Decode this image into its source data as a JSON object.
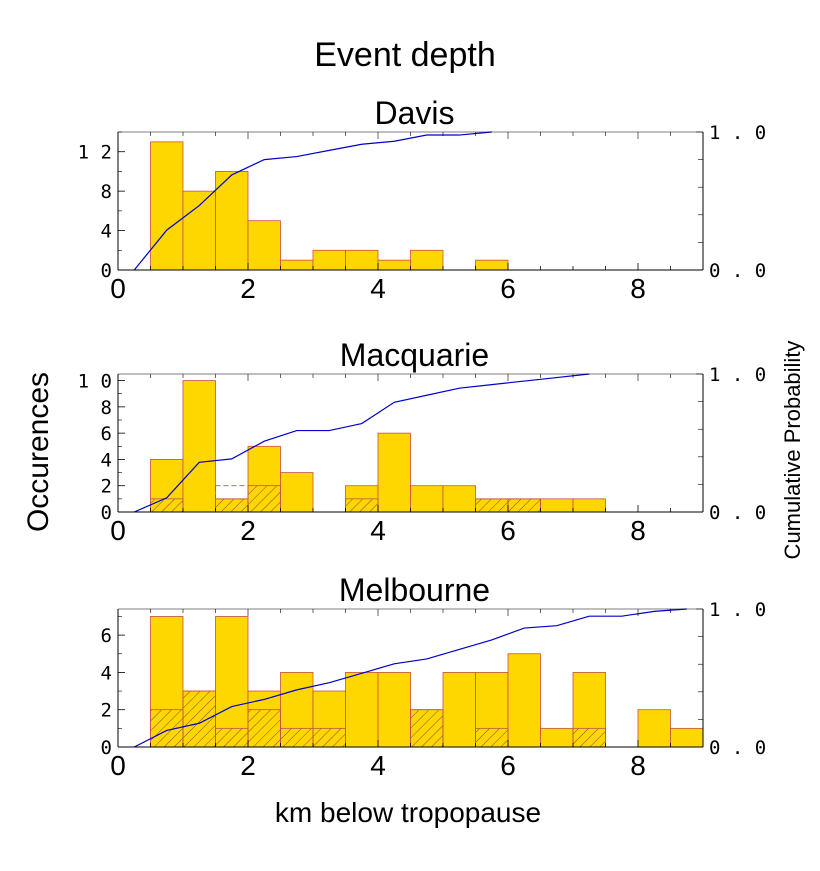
{
  "figure": {
    "title": "Event depth",
    "xlabel": "km below tropopause",
    "ylabel_left": "Occurences",
    "ylabel_right": "Cumulative Probability"
  },
  "colors": {
    "bar_fill": "#FFD700",
    "bar_edge": "#C8504A",
    "hatch": "#8B4A1A",
    "cdf_line": "#0000CC",
    "axis": "#000000"
  },
  "chart_data": [
    {
      "type": "bar",
      "title": "Davis",
      "bin_width": 0.5,
      "bin_starts": [
        0.5,
        1.0,
        1.5,
        2.0,
        2.5,
        3.0,
        3.5,
        4.0,
        4.5,
        5.0,
        5.5
      ],
      "values": [
        13,
        8,
        10,
        5,
        1,
        2,
        2,
        1,
        2,
        0,
        1
      ],
      "hatched_values": [],
      "dashed_values": [],
      "xlim": [
        0,
        9
      ],
      "xticks": [
        0,
        2,
        4,
        6,
        8
      ],
      "xtick_labels": [
        "0",
        "2",
        "4",
        "6",
        "8"
      ],
      "ylim": [
        0,
        14
      ],
      "yticks": [
        0,
        4,
        8,
        12
      ],
      "ytick_labels": [
        "0",
        "4",
        "8",
        "1 2"
      ],
      "cdf": {
        "x": [
          0.25,
          0.75,
          1.25,
          1.75,
          2.25,
          2.75,
          3.25,
          3.75,
          4.25,
          4.75,
          5.25,
          5.75
        ],
        "y": [
          0.0,
          0.289,
          0.467,
          0.689,
          0.8,
          0.822,
          0.867,
          0.911,
          0.933,
          0.978,
          0.978,
          1.0
        ]
      },
      "y2lim": [
        0,
        1
      ],
      "y2ticks": [
        0,
        1
      ],
      "y2tick_labels": [
        "0 . 0",
        "1 . 0"
      ]
    },
    {
      "type": "bar",
      "title": "Macquarie",
      "bin_width": 0.5,
      "bin_starts": [
        0.5,
        1.0,
        1.5,
        2.0,
        2.5,
        3.0,
        3.5,
        4.0,
        4.5,
        5.0,
        5.5,
        6.0,
        6.5,
        7.0
      ],
      "values": [
        4,
        10,
        1,
        5,
        3,
        0,
        2,
        6,
        2,
        2,
        1,
        1,
        1,
        1
      ],
      "hatched_values": [
        1,
        0,
        1,
        2,
        0,
        0,
        1,
        0,
        0,
        0,
        1,
        1,
        0,
        0
      ],
      "dashed_values": [
        0,
        0,
        2,
        0,
        0,
        0,
        0,
        0,
        0,
        0,
        0,
        0,
        0,
        0
      ],
      "xlim": [
        0,
        9
      ],
      "xticks": [
        0,
        2,
        4,
        6,
        8
      ],
      "xtick_labels": [
        "0",
        "2",
        "4",
        "6",
        "8"
      ],
      "ylim": [
        0,
        10.5
      ],
      "yticks": [
        0,
        2,
        4,
        6,
        8,
        10
      ],
      "ytick_labels": [
        "0",
        "2",
        "4",
        "6",
        "8",
        "1 0"
      ],
      "cdf": {
        "x": [
          0.25,
          0.75,
          1.25,
          1.75,
          2.25,
          2.75,
          3.25,
          3.75,
          4.25,
          4.75,
          5.25,
          5.75,
          6.25,
          6.75,
          7.25
        ],
        "y": [
          0.0,
          0.103,
          0.36,
          0.385,
          0.513,
          0.59,
          0.59,
          0.641,
          0.795,
          0.846,
          0.897,
          0.923,
          0.949,
          0.974,
          1.0
        ]
      },
      "y2lim": [
        0,
        1
      ],
      "y2ticks": [
        0,
        1
      ],
      "y2tick_labels": [
        "0 . 0",
        "1 . 0"
      ]
    },
    {
      "type": "bar",
      "title": "Melbourne",
      "bin_width": 0.5,
      "bin_starts": [
        0.5,
        1.0,
        1.5,
        2.0,
        2.5,
        3.0,
        3.5,
        4.0,
        4.5,
        5.0,
        5.5,
        6.0,
        6.5,
        7.0,
        7.5,
        8.0,
        8.5
      ],
      "values": [
        7,
        3,
        7,
        3,
        4,
        3,
        4,
        4,
        2,
        4,
        4,
        5,
        1,
        4,
        0,
        2,
        1
      ],
      "hatched_values": [
        2,
        3,
        1,
        2,
        1,
        1,
        0,
        0,
        2,
        0,
        1,
        0,
        0,
        1,
        0,
        0,
        0
      ],
      "dashed_values": [],
      "xlim": [
        0,
        9
      ],
      "xticks": [
        0,
        2,
        4,
        6,
        8
      ],
      "xtick_labels": [
        "0",
        "2",
        "4",
        "6",
        "8"
      ],
      "ylim": [
        0,
        7.4
      ],
      "yticks": [
        0,
        2,
        4,
        6
      ],
      "ytick_labels": [
        "0",
        "2",
        "4",
        "6"
      ],
      "cdf": {
        "x": [
          0.25,
          0.75,
          1.25,
          1.75,
          2.25,
          2.75,
          3.25,
          3.75,
          4.25,
          4.75,
          5.25,
          5.75,
          6.25,
          6.75,
          7.25,
          7.75,
          8.25,
          8.75
        ],
        "y": [
          0.0,
          0.12,
          0.172,
          0.293,
          0.345,
          0.414,
          0.466,
          0.534,
          0.603,
          0.638,
          0.707,
          0.776,
          0.862,
          0.879,
          0.948,
          0.948,
          0.983,
          1.0
        ]
      },
      "y2lim": [
        0,
        1
      ],
      "y2ticks": [
        0,
        1
      ],
      "y2tick_labels": [
        "0 . 0",
        "1 . 0"
      ]
    }
  ]
}
